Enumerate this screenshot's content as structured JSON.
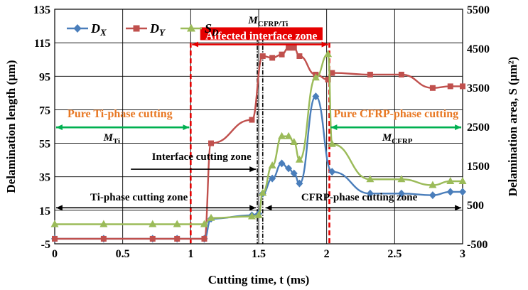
{
  "chart_data": {
    "type": "line",
    "x": [
      0,
      0.36,
      0.72,
      0.9,
      1.1,
      1.15,
      1.45,
      1.5,
      1.53,
      1.6,
      1.67,
      1.72,
      1.76,
      1.8,
      1.92,
      2.01,
      2.04,
      2.32,
      2.55,
      2.78,
      2.91,
      3.0
    ],
    "xlabel": "Cutting time, t (ms)",
    "ylabel": "Delamination length (μm)",
    "y2label": "Delamination area, S (μm²)",
    "xlim": [
      0,
      3
    ],
    "ylim": [
      -5,
      135
    ],
    "y2lim": [
      -500,
      5500
    ],
    "x_ticks": [
      "0",
      "0.5",
      "1",
      "1.5",
      "2",
      "2.5",
      "3"
    ],
    "y_ticks": [
      "-5",
      "15",
      "35",
      "55",
      "75",
      "95",
      "115",
      "135"
    ],
    "y2_ticks": [
      "-500",
      "500",
      "1500",
      "2500",
      "3500",
      "4500",
      "5500"
    ],
    "grid": true,
    "legend": {
      "position": "top-left",
      "entries": [
        "D_X",
        "D_Y",
        "S_D"
      ]
    },
    "series": [
      {
        "name": "D_X",
        "axis": "left",
        "color": "#4A7EBB",
        "marker": "diamond",
        "points": [
          [
            0,
            -2
          ],
          [
            0.36,
            -2
          ],
          [
            0.72,
            -2
          ],
          [
            0.9,
            -2
          ],
          [
            1.1,
            -2
          ],
          [
            1.15,
            10
          ],
          [
            1.45,
            12
          ],
          [
            1.5,
            13
          ],
          [
            1.53,
            25
          ],
          [
            1.6,
            34
          ],
          [
            1.67,
            43
          ],
          [
            1.72,
            40
          ],
          [
            1.76,
            37
          ],
          [
            1.8,
            31
          ],
          [
            1.92,
            83
          ],
          [
            2.04,
            38
          ],
          [
            2.32,
            25
          ],
          [
            2.55,
            25
          ],
          [
            2.78,
            24
          ],
          [
            2.91,
            26
          ],
          [
            3.0,
            26
          ]
        ]
      },
      {
        "name": "D_Y",
        "axis": "left",
        "color": "#C0504D",
        "marker": "square",
        "points": [
          [
            0,
            -2
          ],
          [
            0.36,
            -2
          ],
          [
            0.72,
            -2
          ],
          [
            0.9,
            -2
          ],
          [
            1.1,
            -2
          ],
          [
            1.15,
            55
          ],
          [
            1.45,
            69
          ],
          [
            1.53,
            107
          ],
          [
            1.6,
            106
          ],
          [
            1.67,
            108
          ],
          [
            1.72,
            112
          ],
          [
            1.76,
            112
          ],
          [
            1.8,
            107
          ],
          [
            1.92,
            96
          ],
          [
            2.01,
            93
          ],
          [
            2.04,
            97
          ],
          [
            2.32,
            96
          ],
          [
            2.55,
            96
          ],
          [
            2.78,
            88
          ],
          [
            2.91,
            89
          ],
          [
            3.0,
            89
          ]
        ]
      },
      {
        "name": "S_D",
        "axis": "right",
        "color": "#9BBB59",
        "marker": "triangle",
        "points": [
          [
            0,
            0
          ],
          [
            0.36,
            0
          ],
          [
            0.72,
            0
          ],
          [
            0.9,
            0
          ],
          [
            1.1,
            0
          ],
          [
            1.15,
            160
          ],
          [
            1.45,
            200
          ],
          [
            1.5,
            230
          ],
          [
            1.53,
            800
          ],
          [
            1.6,
            1500
          ],
          [
            1.67,
            2250
          ],
          [
            1.72,
            2250
          ],
          [
            1.76,
            2100
          ],
          [
            1.8,
            1650
          ],
          [
            1.92,
            3750
          ],
          [
            2.01,
            4350
          ],
          [
            2.04,
            2050
          ],
          [
            2.32,
            1150
          ],
          [
            2.55,
            1150
          ],
          [
            2.78,
            1000
          ],
          [
            2.91,
            1100
          ],
          [
            3.0,
            1100
          ]
        ]
      }
    ],
    "annotations": {
      "pure_ti": "Pure Ti-phase cutting",
      "m_ti": "M",
      "m_ti_sub": "Ti",
      "affected_zone": "Affected interface zone",
      "m_interface": "M",
      "m_interface_sub": "CFRP/Ti",
      "pure_cfrp": "Pure CFRP-phase cutting",
      "m_cfrp": "M",
      "m_cfrp_sub": "CFRP",
      "interface_cutting_zone": "Interface cutting zone",
      "ti_phase_cutting_zone": "Ti-phase cutting zone",
      "cfrp_phase_cutting_zone": "CFRP-phase cutting zone"
    },
    "colors": {
      "accent_red": "#E60000",
      "arrow_green": "#00B050",
      "orange_text": "#E87722"
    }
  }
}
